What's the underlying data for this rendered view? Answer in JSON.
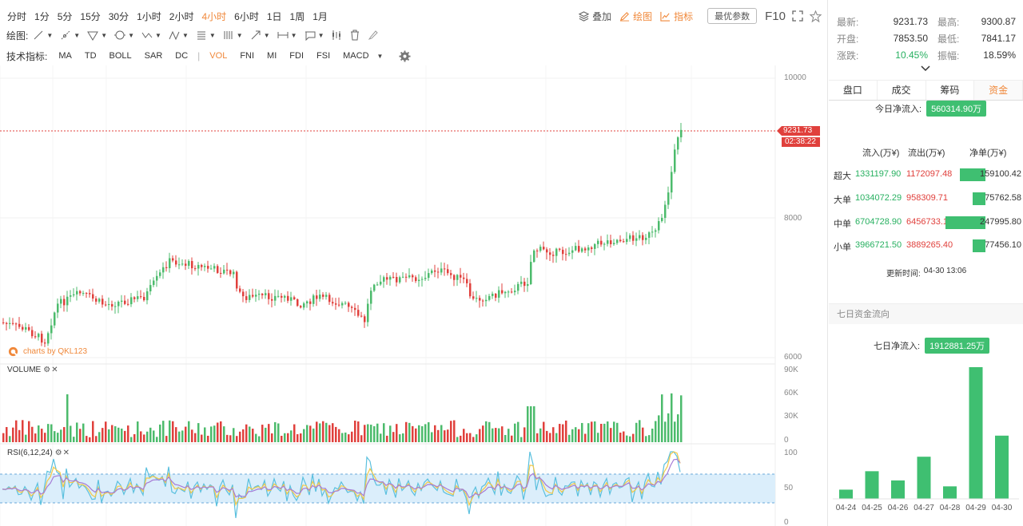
{
  "toolbar": {
    "timeframes": [
      "分时",
      "1分",
      "5分",
      "15分",
      "30分",
      "1小时",
      "2小时",
      "4小时",
      "6小时",
      "1日",
      "1周",
      "1月"
    ],
    "active_timeframe": "4小时",
    "overlay_label": "叠加",
    "draw_label": "绘图",
    "indicator_label": "指标",
    "best_params_label": "最优参数",
    "f10_label": "F10",
    "draw_prefix": "绘图:",
    "indicator_prefix": "技术指标:",
    "indicators": [
      "MA",
      "TD",
      "BOLL",
      "SAR",
      "DC"
    ],
    "indicators2": [
      "VOL",
      "FNI",
      "MI",
      "FDI",
      "FSI",
      "MACD"
    ],
    "active_indicator": "VOL"
  },
  "chart": {
    "watermark": "charts by QKL123",
    "price_label": "9231.73",
    "countdown_label": "02:38:22",
    "price_axis": [
      "10000",
      "8000",
      "6000"
    ],
    "volume_title": "VOLUME",
    "volume_axis": [
      "90K",
      "60K",
      "30K",
      "0"
    ],
    "rsi_title": "RSI(6,12,24)",
    "rsi_axis": [
      "100",
      "50",
      "0"
    ]
  },
  "quote": {
    "latest_label": "最新:",
    "latest": "9231.73",
    "high_label": "最高:",
    "high": "9300.87",
    "open_label": "开盘:",
    "open": "7853.50",
    "low_label": "最低:",
    "low": "7841.17",
    "change_label": "涨跌:",
    "change": "10.45%",
    "amplitude_label": "振幅:",
    "amplitude": "18.59%"
  },
  "tabs": [
    "盘口",
    "成交",
    "筹码",
    "资金"
  ],
  "active_tab": "资金",
  "capital": {
    "today_label": "今日净流入:",
    "today_value": "560314.90万",
    "headers": [
      "流入(万¥)",
      "流出(万¥)",
      "净单(万¥)"
    ],
    "rows": [
      {
        "name": "超大",
        "in": "1331197.90",
        "out": "1172097.48",
        "net": "159100.42",
        "ratio": 0.64
      },
      {
        "name": "大单",
        "in": "1034072.29",
        "out": "958309.71",
        "net": "75762.58",
        "ratio": 0.31
      },
      {
        "name": "中单",
        "in": "6704728.90",
        "out": "6456733.10",
        "net": "247995.80",
        "ratio": 1.0
      },
      {
        "name": "小单",
        "in": "3966721.50",
        "out": "3889265.40",
        "net": "77456.10",
        "ratio": 0.31
      }
    ],
    "update_label": "更新时间:",
    "update_time": "04-30 13:06"
  },
  "seven_day": {
    "title": "七日资金流向",
    "net_label": "七日净流入:",
    "net_value": "1912881.25万",
    "dates": [
      "04-24",
      "04-25",
      "04-26",
      "04-27",
      "04-28",
      "04-29",
      "04-30"
    ],
    "values": [
      0.07,
      0.21,
      0.14,
      0.32,
      0.095,
      1.0,
      0.48
    ]
  },
  "colors": {
    "up": "#4cbb6c",
    "down": "#e0403c",
    "accent": "#f0883a"
  }
}
